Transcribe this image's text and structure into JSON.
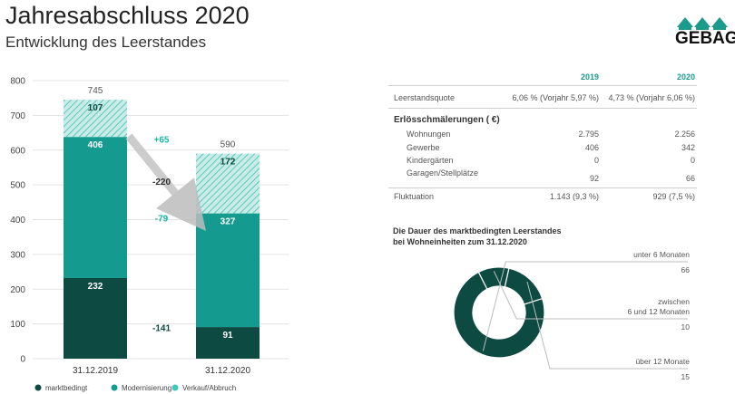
{
  "header": {
    "title": "Jahresabschluss 2020",
    "subtitle": "Entwicklung des Leerstandes",
    "logo_text": "GEBAG"
  },
  "chart_data": [
    {
      "type": "bar",
      "stacked": true,
      "categories": [
        "31.12.2019",
        "31.12.2020"
      ],
      "series": [
        {
          "name": "marktbedingt",
          "values": [
            232,
            91
          ],
          "color": "#0d4a42"
        },
        {
          "name": "Modernisierung",
          "values": [
            406,
            327
          ],
          "color": "#159a8f"
        },
        {
          "name": "Verkauf/Abbruch",
          "values": [
            107,
            172
          ],
          "color": "#3ec9b8",
          "pattern": "hatched"
        }
      ],
      "totals": [
        745,
        590
      ],
      "yticks": [
        0,
        100,
        200,
        300,
        400,
        500,
        600,
        700,
        800
      ],
      "ylim": [
        0,
        800
      ],
      "annotations": [
        "+65",
        "-220",
        "-79",
        "-141"
      ],
      "legend_position": "bottom"
    },
    {
      "type": "pie",
      "title": "Die Dauer des marktbedingten Leerstandes bei Wohneinheiten zum 31.12.2020",
      "title_lines": [
        "Die Dauer des marktbedingten Leerstandes",
        "bei Wohneinheiten zum 31.12.2020"
      ],
      "donut": true,
      "slices": [
        {
          "label": "unter 6 Monaten",
          "value": 66,
          "color": "#0d4a42"
        },
        {
          "label_lines": [
            "zwischen",
            "6 und 12 Monaten"
          ],
          "label": "zwischen 6 und 12 Monaten",
          "value": 10,
          "color": "#0d4a42"
        },
        {
          "label": "über 12 Monate",
          "value": 15,
          "color": "#0d4a42"
        }
      ]
    }
  ],
  "table": {
    "columns": [
      "2019",
      "2020"
    ],
    "rows": [
      {
        "label": "Leerstandsquote",
        "v2019": "6,06 % (Vorjahr 5,97 %)",
        "v2020": "4,73 % (Vorjahr 6,06 %)"
      },
      {
        "label": "Erlösschmälerungen ( €)",
        "v2019": "",
        "v2020": ""
      },
      {
        "label": "Wohnungen",
        "v2019": "2.795",
        "v2020": "2.256"
      },
      {
        "label": "Gewerbe",
        "v2019": "406",
        "v2020": "342"
      },
      {
        "label": "Kindergärten",
        "v2019": "0",
        "v2020": "0"
      },
      {
        "label": "Garagen/Stellplätze",
        "v2019": "92",
        "v2020": "66"
      },
      {
        "label": "Fluktuation",
        "v2019": "1.143 (9,3 %)",
        "v2020": "929 (7,5 %)"
      }
    ]
  },
  "colors": {
    "accent": "#1a9b8c",
    "dark": "#0d4a42",
    "mid": "#159a8f",
    "light": "#3ec9b8"
  }
}
